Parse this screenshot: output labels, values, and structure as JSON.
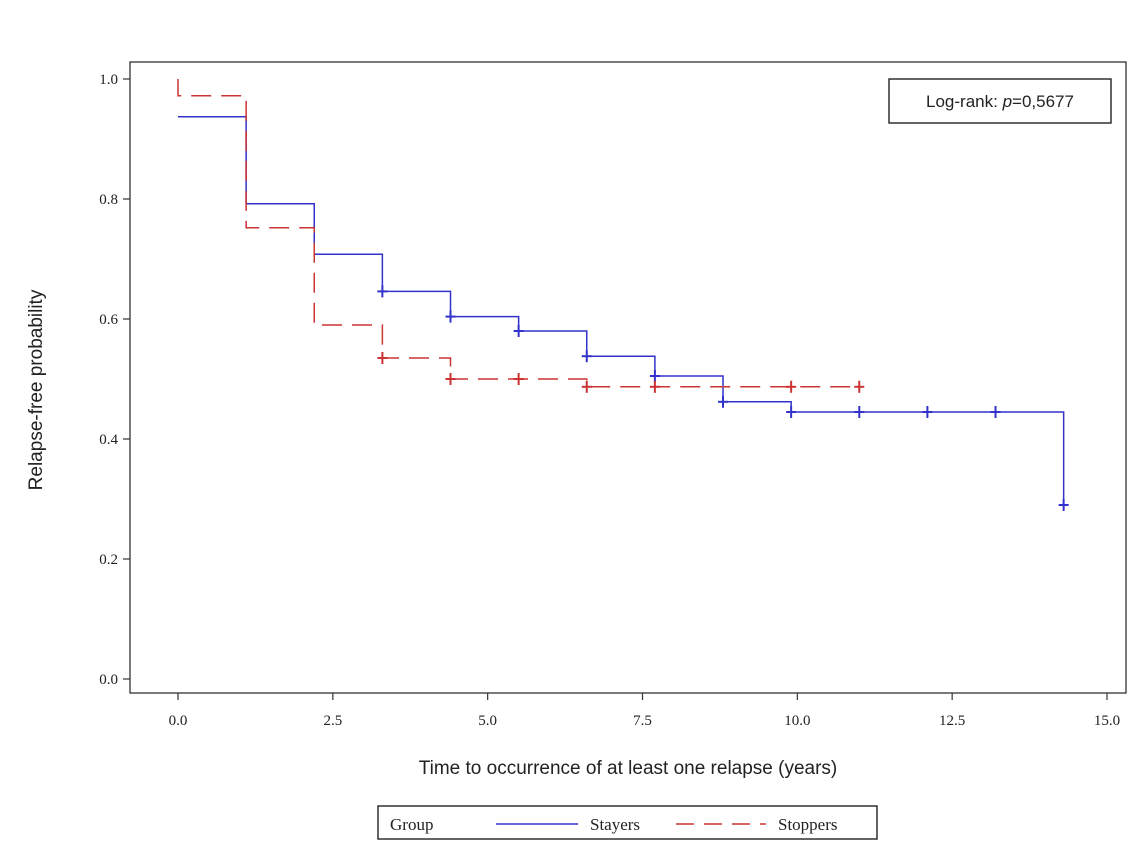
{
  "chart_data": {
    "type": "line",
    "subtype": "kaplan-meier step plot",
    "xlabel": "Time to occurrence of at least one relapse (years)",
    "ylabel": "Relapse-free  probability",
    "xlim": [
      0,
      15
    ],
    "ylim": [
      0,
      1
    ],
    "x_ticks": [
      "0.0",
      "2.5",
      "5.0",
      "7.5",
      "10.0",
      "12.5",
      "15.0"
    ],
    "x_tick_values": [
      0,
      2.5,
      5,
      7.5,
      10,
      12.5,
      15
    ],
    "y_ticks": [
      "0.0",
      "0.2",
      "0.4",
      "0.6",
      "0.8",
      "1.0"
    ],
    "y_tick_values": [
      0,
      0.2,
      0.4,
      0.6,
      0.8,
      1.0
    ],
    "grid": false,
    "annotation": {
      "prefix": "Log-rank: ",
      "p_symbol": "p",
      "value": "=0,5677",
      "placement": "top-right"
    },
    "legend": {
      "title": "Group",
      "placement": "bottom",
      "entries": [
        "Stayers",
        "Stoppers"
      ]
    },
    "series": [
      {
        "name": "Stayers",
        "color": "#3333cc",
        "line_style": "solid",
        "steps": [
          {
            "x": 0.0,
            "y": 0.937
          },
          {
            "x": 1.1,
            "y": 0.792
          },
          {
            "x": 2.2,
            "y": 0.708
          },
          {
            "x": 3.3,
            "y": 0.646
          },
          {
            "x": 4.4,
            "y": 0.604
          },
          {
            "x": 5.5,
            "y": 0.58
          },
          {
            "x": 6.6,
            "y": 0.538
          },
          {
            "x": 7.7,
            "y": 0.505
          },
          {
            "x": 8.8,
            "y": 0.462
          },
          {
            "x": 9.9,
            "y": 0.445
          },
          {
            "x": 14.3,
            "y": 0.29
          }
        ],
        "end_x": 14.3,
        "censored": [
          {
            "x": 3.3,
            "y": 0.646
          },
          {
            "x": 4.4,
            "y": 0.604
          },
          {
            "x": 5.5,
            "y": 0.58
          },
          {
            "x": 6.6,
            "y": 0.538
          },
          {
            "x": 7.7,
            "y": 0.505
          },
          {
            "x": 8.8,
            "y": 0.462
          },
          {
            "x": 9.9,
            "y": 0.445
          },
          {
            "x": 11.0,
            "y": 0.445
          },
          {
            "x": 12.1,
            "y": 0.445
          },
          {
            "x": 13.2,
            "y": 0.445
          },
          {
            "x": 14.3,
            "y": 0.29
          }
        ]
      },
      {
        "name": "Stoppers",
        "color": "#cc3333",
        "line_style": "dashed",
        "steps": [
          {
            "x": 0.0,
            "y": 1.0
          },
          {
            "x": 0.0,
            "y": 0.972
          },
          {
            "x": 1.1,
            "y": 0.752
          },
          {
            "x": 2.2,
            "y": 0.59
          },
          {
            "x": 3.3,
            "y": 0.535
          },
          {
            "x": 4.4,
            "y": 0.5
          },
          {
            "x": 6.6,
            "y": 0.487
          }
        ],
        "end_x": 11.0,
        "censored": [
          {
            "x": 3.3,
            "y": 0.535
          },
          {
            "x": 4.4,
            "y": 0.5
          },
          {
            "x": 5.5,
            "y": 0.5
          },
          {
            "x": 6.6,
            "y": 0.487
          },
          {
            "x": 7.7,
            "y": 0.487
          },
          {
            "x": 9.9,
            "y": 0.487
          },
          {
            "x": 11.0,
            "y": 0.487
          }
        ]
      }
    ]
  }
}
